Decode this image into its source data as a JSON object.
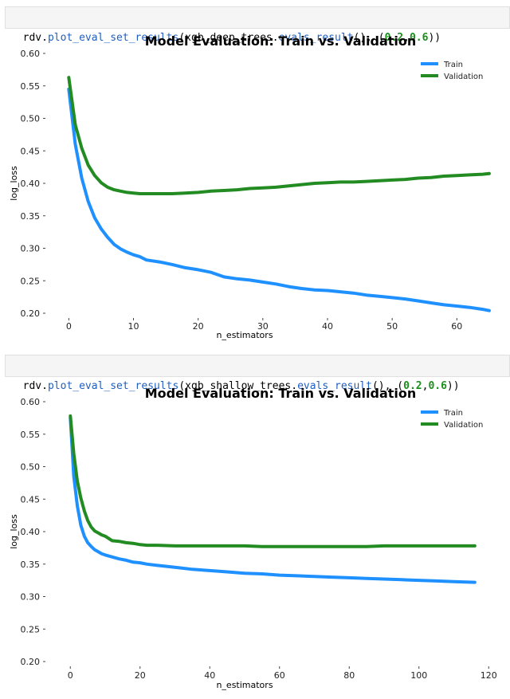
{
  "cells": [
    {
      "code": {
        "prefix": "rdv.",
        "func": "plot_eval_set_results",
        "open": "(",
        "arg": "xgb_deep_trees.",
        "method": "evals_result",
        "mid": "(), (",
        "n1": "0.2",
        "comma": ",",
        "n2": "0.6",
        "close": "))"
      }
    },
    {
      "code": {
        "prefix": "rdv.",
        "func": "plot_eval_set_results",
        "open": "(",
        "arg": "xgb_shallow_trees.",
        "method": "evals_result",
        "mid": "(), (",
        "n1": "0.2",
        "comma": ",",
        "n2": "0.6",
        "close": "))"
      }
    }
  ],
  "colors": {
    "train": "#1e90ff",
    "validation": "#228b22"
  },
  "chart_data": [
    {
      "type": "line",
      "title": "Model Evaluation: Train vs. Validation",
      "xlabel": "n_estimators",
      "ylabel": "log_loss",
      "xlim": [
        -3,
        66
      ],
      "ylim": [
        0.2,
        0.6
      ],
      "xticks": [
        0,
        10,
        20,
        30,
        40,
        50,
        60
      ],
      "yticks": [
        "0.20",
        "0.25",
        "0.30",
        "0.35",
        "0.40",
        "0.45",
        "0.50",
        "0.55",
        "0.60"
      ],
      "legend": "top-right",
      "grid": false,
      "series": [
        {
          "name": "Train",
          "x": [
            0,
            1,
            2,
            3,
            4,
            5,
            6,
            7,
            8,
            9,
            10,
            11,
            12,
            14,
            16,
            18,
            20,
            22,
            24,
            26,
            28,
            30,
            32,
            34,
            36,
            38,
            40,
            42,
            44,
            46,
            48,
            50,
            52,
            54,
            56,
            58,
            60,
            62,
            64,
            65
          ],
          "values": [
            0.545,
            0.46,
            0.408,
            0.372,
            0.347,
            0.33,
            0.317,
            0.306,
            0.299,
            0.294,
            0.29,
            0.287,
            0.282,
            0.279,
            0.275,
            0.27,
            0.267,
            0.263,
            0.256,
            0.253,
            0.251,
            0.248,
            0.245,
            0.241,
            0.238,
            0.236,
            0.235,
            0.233,
            0.231,
            0.228,
            0.226,
            0.224,
            0.222,
            0.219,
            0.216,
            0.213,
            0.211,
            0.209,
            0.206,
            0.204
          ]
        },
        {
          "name": "Validation",
          "x": [
            0,
            1,
            2,
            3,
            4,
            5,
            6,
            7,
            8,
            9,
            10,
            11,
            12,
            14,
            16,
            18,
            20,
            22,
            24,
            26,
            28,
            30,
            32,
            34,
            36,
            38,
            40,
            42,
            44,
            46,
            48,
            50,
            52,
            54,
            56,
            58,
            60,
            62,
            64,
            65
          ],
          "values": [
            0.563,
            0.49,
            0.454,
            0.428,
            0.412,
            0.401,
            0.394,
            0.39,
            0.388,
            0.386,
            0.385,
            0.384,
            0.384,
            0.384,
            0.384,
            0.385,
            0.386,
            0.388,
            0.389,
            0.39,
            0.392,
            0.393,
            0.394,
            0.396,
            0.398,
            0.4,
            0.401,
            0.402,
            0.402,
            0.403,
            0.404,
            0.405,
            0.406,
            0.408,
            0.409,
            0.411,
            0.412,
            0.413,
            0.414,
            0.415
          ]
        }
      ]
    },
    {
      "type": "line",
      "title": "Model Evaluation: Train vs. Validation",
      "xlabel": "n_estimators",
      "ylabel": "log_loss",
      "xlim": [
        -6,
        122
      ],
      "ylim": [
        0.2,
        0.6
      ],
      "xticks": [
        0,
        20,
        40,
        60,
        80,
        100,
        120
      ],
      "yticks": [
        "0.20",
        "0.25",
        "0.30",
        "0.35",
        "0.40",
        "0.45",
        "0.50",
        "0.55",
        "0.60"
      ],
      "legend": "top-right",
      "grid": false,
      "series": [
        {
          "name": "Train",
          "x": [
            0,
            1,
            2,
            3,
            4,
            5,
            6,
            7,
            8,
            9,
            10,
            12,
            14,
            16,
            18,
            20,
            22,
            25,
            30,
            35,
            40,
            45,
            50,
            55,
            60,
            65,
            70,
            75,
            80,
            85,
            90,
            95,
            100,
            105,
            110,
            116
          ],
          "values": [
            0.575,
            0.485,
            0.44,
            0.41,
            0.393,
            0.383,
            0.377,
            0.372,
            0.369,
            0.366,
            0.364,
            0.361,
            0.358,
            0.356,
            0.353,
            0.352,
            0.35,
            0.348,
            0.345,
            0.342,
            0.34,
            0.338,
            0.336,
            0.335,
            0.333,
            0.332,
            0.331,
            0.33,
            0.329,
            0.328,
            0.327,
            0.326,
            0.325,
            0.324,
            0.323,
            0.322
          ]
        },
        {
          "name": "Validation",
          "x": [
            0,
            1,
            2,
            3,
            4,
            5,
            6,
            7,
            8,
            9,
            10,
            12,
            14,
            16,
            18,
            20,
            22,
            25,
            30,
            35,
            40,
            45,
            50,
            55,
            60,
            65,
            70,
            75,
            80,
            85,
            90,
            95,
            100,
            105,
            110,
            116
          ],
          "values": [
            0.578,
            0.52,
            0.478,
            0.452,
            0.432,
            0.417,
            0.407,
            0.401,
            0.398,
            0.395,
            0.393,
            0.386,
            0.385,
            0.383,
            0.382,
            0.38,
            0.379,
            0.379,
            0.378,
            0.378,
            0.378,
            0.378,
            0.378,
            0.377,
            0.377,
            0.377,
            0.377,
            0.377,
            0.377,
            0.377,
            0.378,
            0.378,
            0.378,
            0.378,
            0.378,
            0.378
          ]
        }
      ]
    }
  ]
}
